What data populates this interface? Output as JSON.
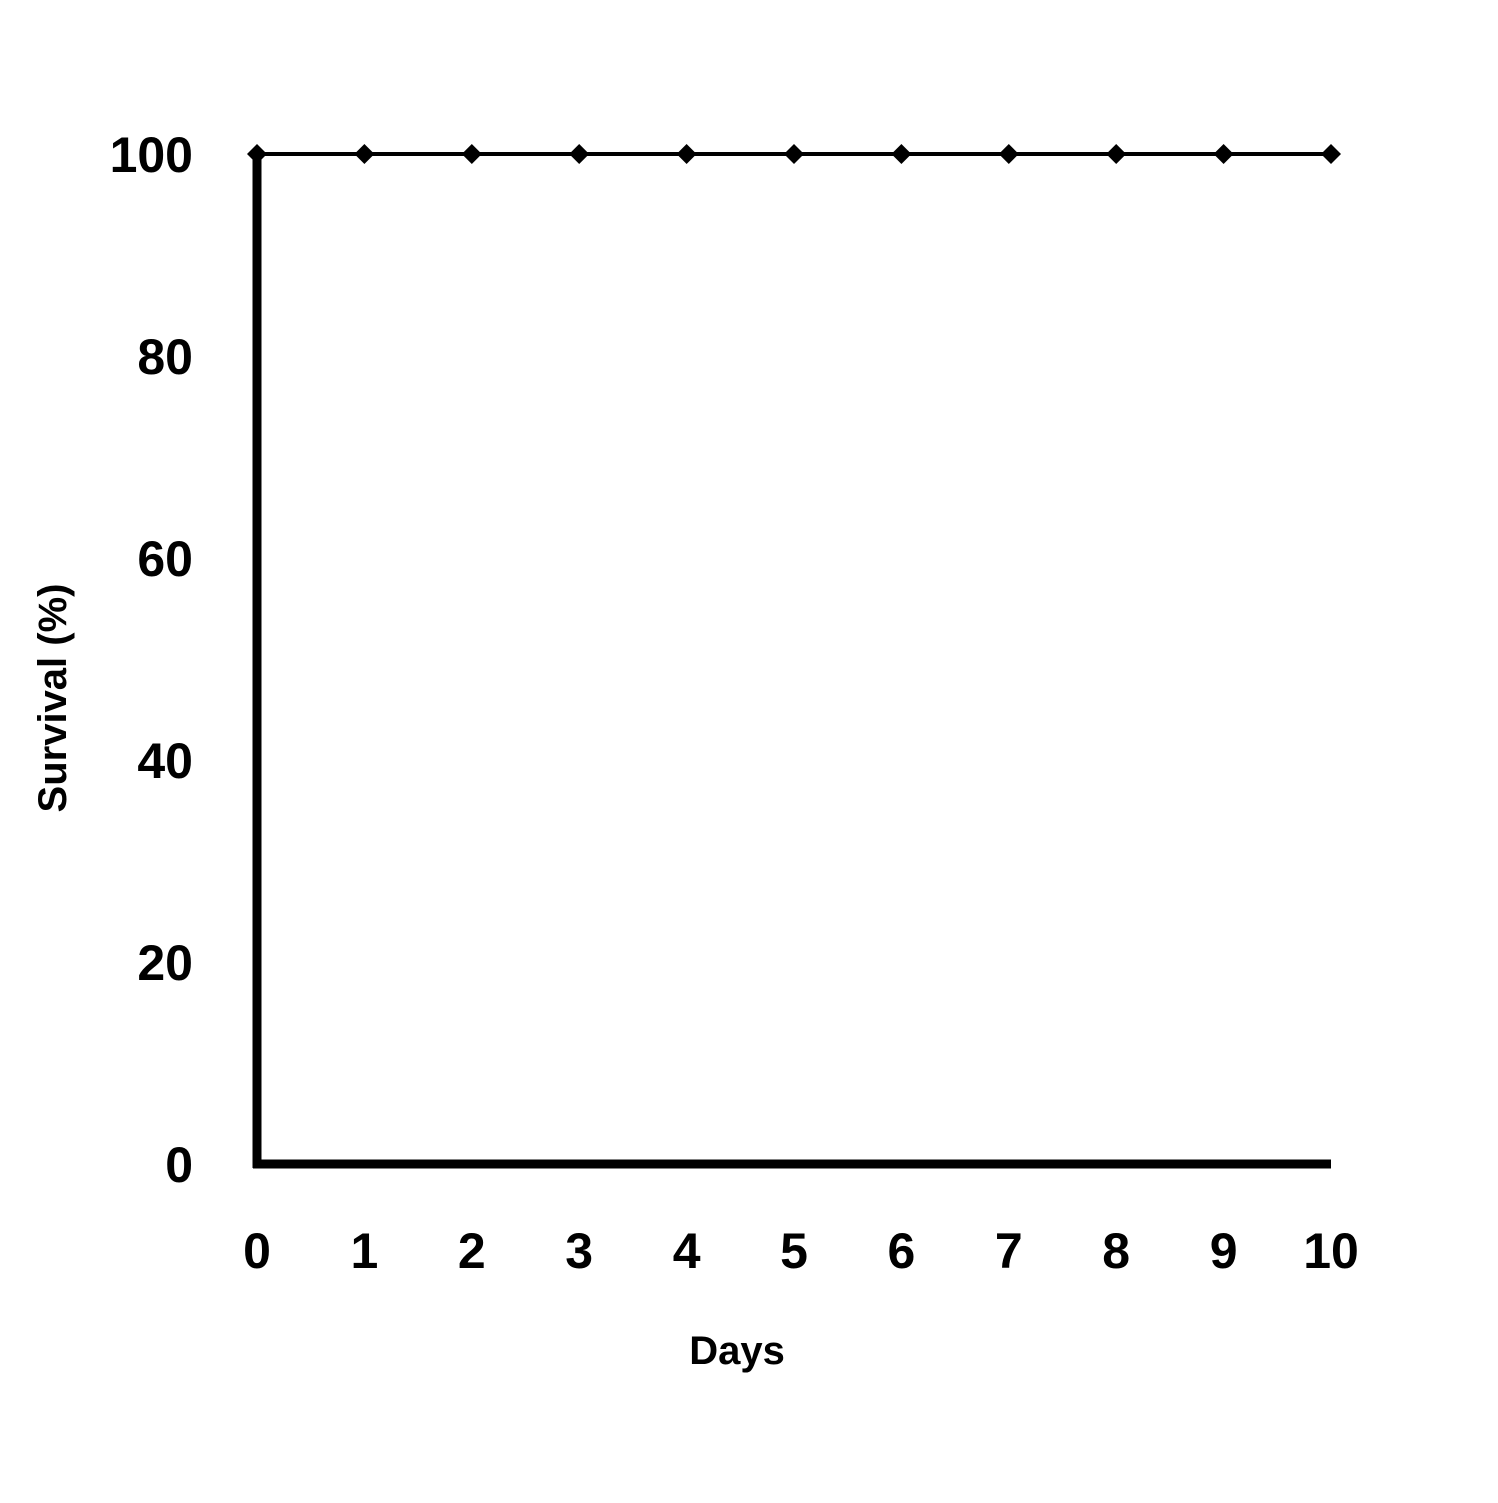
{
  "chart_data": {
    "type": "line",
    "title": "",
    "xlabel": "Days",
    "ylabel": "Survival (%)",
    "x": [
      0,
      1,
      2,
      3,
      4,
      5,
      6,
      7,
      8,
      9,
      10
    ],
    "series": [
      {
        "values": [
          100,
          100,
          100,
          100,
          100,
          100,
          100,
          100,
          100,
          100,
          100
        ],
        "color": "#000000",
        "marker": "diamond"
      }
    ],
    "xlim": [
      0,
      10
    ],
    "ylim": [
      0,
      100
    ],
    "xticks": [
      "0",
      "1",
      "2",
      "3",
      "4",
      "5",
      "6",
      "7",
      "8",
      "9",
      "10"
    ],
    "yticks": [
      "0",
      "20",
      "40",
      "60",
      "80",
      "100"
    ],
    "grid": false,
    "legend": "none"
  }
}
